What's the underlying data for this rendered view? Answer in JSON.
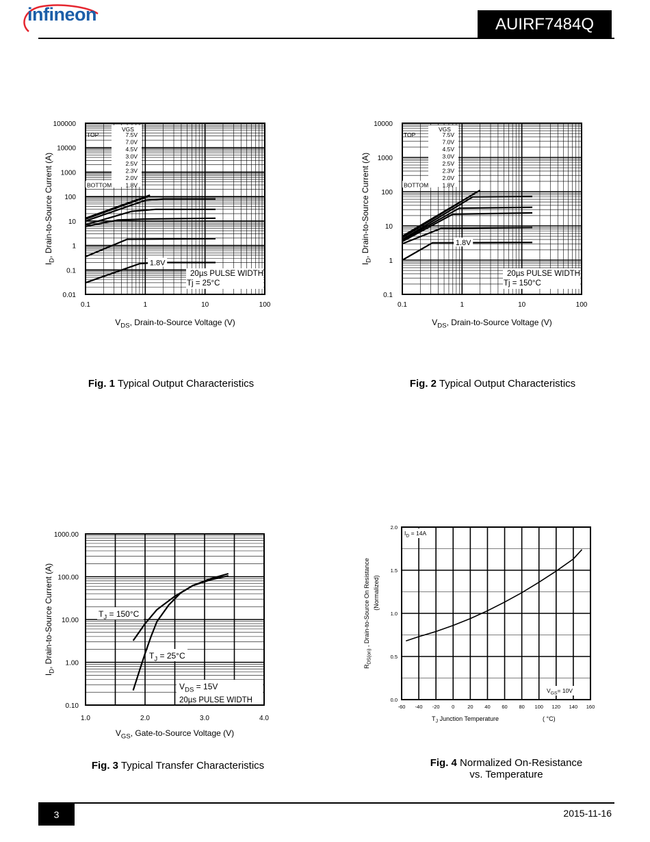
{
  "header": {
    "brand": "infineon",
    "part_number": "AUIRF7484Q",
    "icon": "infineon-logo-icon"
  },
  "footer": {
    "page": "3",
    "date": "2015-11-16"
  },
  "captions": [
    {
      "fig": "Fig. 1",
      "text": "Typical Output Characteristics"
    },
    {
      "fig": "Fig. 2",
      "text": "Typical Output Characteristics"
    },
    {
      "fig": "Fig. 3",
      "text": "Typical Transfer Characteristics"
    },
    {
      "fig": "Fig. 4",
      "text": "Normalized On-Resistance",
      "text2": "vs. Temperature"
    }
  ],
  "chart_data": [
    {
      "type": "line",
      "xscale": "log",
      "yscale": "log",
      "xlim": [
        0.1,
        100
      ],
      "ylim": [
        0.01,
        100000
      ],
      "xticks": [
        "0.1",
        "1",
        "10",
        "100"
      ],
      "yticks": [
        "0.01",
        "0.1",
        "1",
        "10",
        "100",
        "1000",
        "10000",
        "100000"
      ],
      "xlabel_main": "V",
      "xlabel_sub": "DS",
      "xlabel_rest": ", Drain-to-Source Voltage (V)",
      "ylabel_main": "I",
      "ylabel_sub": "D",
      "ylabel_rest": ", Drain-to-Source Current (A)",
      "legend": {
        "header": "VGS",
        "top_label": "TOP",
        "bottom_label": "BOTTOM",
        "entries": [
          "7.5V",
          "7.0V",
          "4.5V",
          "3.0V",
          "2.5V",
          "2.3V",
          "2.0V",
          "1.8V"
        ]
      },
      "curve_label": "1.8V",
      "note1": "20µs PULSE WIDTH",
      "note2": "Tj = 25°C",
      "series": [
        {
          "x": [
            0.1,
            1.2
          ],
          "y": [
            13,
            115
          ]
        },
        {
          "x": [
            0.1,
            1.1
          ],
          "y": [
            12,
            100
          ]
        },
        {
          "x": [
            0.1,
            1.0,
            2,
            15
          ],
          "y": [
            10,
            70,
            80,
            80
          ]
        },
        {
          "x": [
            0.1,
            0.6,
            1.5,
            15
          ],
          "y": [
            7,
            25,
            30,
            30
          ]
        },
        {
          "x": [
            0.1,
            0.35,
            1,
            15
          ],
          "y": [
            6,
            11,
            12,
            13
          ]
        },
        {
          "x": [
            0.1,
            0.5,
            15
          ],
          "y": [
            0.35,
            1.8,
            1.9
          ]
        },
        {
          "x": [
            0.1,
            0.8,
            1.5,
            15
          ],
          "y": [
            0.03,
            0.18,
            0.2,
            0.2
          ]
        }
      ]
    },
    {
      "type": "line",
      "xscale": "log",
      "yscale": "log",
      "xlim": [
        0.1,
        100
      ],
      "ylim": [
        0.1,
        10000
      ],
      "xticks": [
        "0.1",
        "1",
        "10",
        "100"
      ],
      "yticks": [
        "0.1",
        "1",
        "10",
        "100",
        "1000",
        "10000"
      ],
      "xlabel_main": "V",
      "xlabel_sub": "DS",
      "xlabel_rest": ", Drain-to-Source Voltage (V)",
      "ylabel_main": "I",
      "ylabel_sub": "D",
      "ylabel_rest": ", Drain-to-Source Current (A)",
      "legend": {
        "header": "VGS",
        "top_label": "TOP",
        "bottom_label": "BOTTOM",
        "entries": [
          "7.5V",
          "7.0V",
          "4.5V",
          "3.0V",
          "2.5V",
          "2.3V",
          "2.0V",
          "1.8V"
        ]
      },
      "curve_label": "1.8V",
      "note1": "20µs PULSE WIDTH",
      "note2": "Tj = 150°C",
      "series": [
        {
          "x": [
            0.1,
            2.0
          ],
          "y": [
            5,
            110
          ]
        },
        {
          "x": [
            0.1,
            1.8
          ],
          "y": [
            4.5,
            100
          ]
        },
        {
          "x": [
            0.1,
            1.5,
            15
          ],
          "y": [
            4,
            70,
            72
          ]
        },
        {
          "x": [
            0.1,
            0.9,
            15
          ],
          "y": [
            3.8,
            33,
            35
          ]
        },
        {
          "x": [
            0.1,
            0.7,
            15
          ],
          "y": [
            3.5,
            22,
            24
          ]
        },
        {
          "x": [
            0.1,
            0.45,
            15
          ],
          "y": [
            3,
            8.5,
            9
          ]
        },
        {
          "x": [
            0.1,
            0.32,
            15
          ],
          "y": [
            1.0,
            3.2,
            3.3
          ]
        }
      ]
    },
    {
      "type": "line",
      "xscale": "linear",
      "yscale": "log",
      "xlim": [
        1.0,
        4.0
      ],
      "ylim": [
        0.1,
        1000
      ],
      "xticks": [
        "1.0",
        "2.0",
        "3.0",
        "4.0"
      ],
      "yticks": [
        "0.10",
        "1.00",
        "10.00",
        "100.00",
        "1000.00"
      ],
      "xlabel_main": "V",
      "xlabel_sub": "GS",
      "xlabel_rest": ", Gate-to-Source Voltage (V)",
      "ylabel_main": "I",
      "ylabel_sub": "D",
      "ylabel_rest": ", Drain-to-Source Current  (A)",
      "label_150_main": "T",
      "label_150_sub": "J",
      "label_150_rest": " = 150°C",
      "label_25_main": "T",
      "label_25_sub": "J",
      "label_25_rest": " = 25°C",
      "note1_main": "V",
      "note1_sub": "DS",
      "note1_rest": " = 15V",
      "note2": "20µs PULSE WIDTH",
      "series": [
        {
          "name": "TJ = 150°C",
          "x": [
            1.8,
            2.0,
            2.2,
            2.5,
            2.8,
            3.1,
            3.4
          ],
          "y": [
            3.2,
            8,
            17,
            35,
            62,
            85,
            105
          ]
        },
        {
          "name": "TJ = 25°C",
          "x": [
            1.8,
            1.9,
            2.0,
            2.1,
            2.2,
            2.4,
            2.6,
            2.8,
            3.1,
            3.4
          ],
          "y": [
            0.22,
            0.6,
            1.6,
            4,
            9,
            22,
            42,
            62,
            90,
            118
          ]
        }
      ]
    },
    {
      "type": "line",
      "xscale": "linear",
      "yscale": "linear",
      "xlim": [
        -60,
        160
      ],
      "ylim": [
        0.0,
        2.0
      ],
      "xticks": [
        "-60",
        "-40",
        "-20",
        "0",
        "20",
        "40",
        "60",
        "80",
        "100",
        "120",
        "140",
        "160"
      ],
      "yticks": [
        "0.0",
        "0.5",
        "1.0",
        "1.5",
        "2.0"
      ],
      "xlabel_main": "T",
      "xlabel_sub": "J",
      "xlabel_rest": "  Junction Temperature",
      "xlabel_unit": "(   °C)",
      "ylabel_main": "R",
      "ylabel_sub": "DS(on)",
      "ylabel_rest": " ,  Drain-to-Source On Resistance",
      "ylabel2": "(Normalized)",
      "id_main": "I",
      "id_sub": "D",
      "id_rest": "  =  14A",
      "vgs_main": "V",
      "vgs_sub": "GS",
      "vgs_rest": "= 10V",
      "series": [
        {
          "x": [
            -55,
            -40,
            -20,
            0,
            20,
            40,
            60,
            80,
            100,
            120,
            140,
            150
          ],
          "y": [
            0.68,
            0.73,
            0.79,
            0.86,
            0.94,
            1.03,
            1.13,
            1.24,
            1.36,
            1.49,
            1.63,
            1.74
          ]
        }
      ]
    }
  ]
}
